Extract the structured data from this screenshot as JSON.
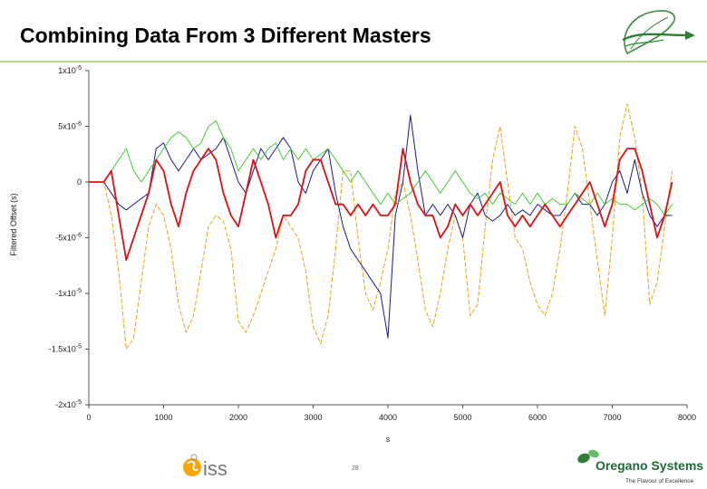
{
  "slide": {
    "title": "Combining Data From 3 Different Masters",
    "page_number": "28",
    "footer_logo_left_text": "iss",
    "footer_brand": "Oregano Systems",
    "footer_tagline": "The Flavour of Excellence"
  },
  "colors": {
    "series_dark_blue": "#1a1a8c",
    "series_red": "#dd1111",
    "series_green": "#44cc33",
    "series_orange": "#e8a417",
    "accent_green": "#2e7d32",
    "iss_orange": "#f7a600"
  },
  "icons": {
    "header_logo": "green-leaf-arrow-icon",
    "footer_left_logo": "iss-logo-icon",
    "footer_right_logo": "oregano-leaf-icon"
  },
  "chart_data": {
    "type": "line",
    "title": "",
    "xlabel": "s",
    "ylabel": "Filtered Offset (s)",
    "xlim": [
      0,
      8000
    ],
    "ylim": [
      -2e-05,
      1e-05
    ],
    "grid": false,
    "legend": "none",
    "x_ticks": [
      0,
      1000,
      2000,
      3000,
      4000,
      5000,
      6000,
      7000,
      8000
    ],
    "x_tick_labels": [
      "0",
      "1000",
      "2000",
      "3000",
      "4000",
      "5000",
      "6000",
      "7000",
      "8000"
    ],
    "y_ticks": [
      1e-05,
      5e-06,
      0,
      -5e-06,
      -1e-05,
      -1.5e-05,
      -2e-05
    ],
    "y_tick_labels": [
      {
        "mantissa": "1x10",
        "exp": "-5"
      },
      {
        "mantissa": "5x10",
        "exp": "-6"
      },
      {
        "mantissa": "0",
        "exp": ""
      },
      {
        "mantissa": "-5x10",
        "exp": "-6"
      },
      {
        "mantissa": "-1x10",
        "exp": "-5"
      },
      {
        "mantissa": "-1.5x10",
        "exp": "-5"
      },
      {
        "mantissa": "-2x10",
        "exp": "-5"
      }
    ],
    "series": [
      {
        "color": "#e8a417",
        "dashed": true,
        "x": [
          0,
          100,
          200,
          300,
          400,
          500,
          600,
          700,
          800,
          900,
          1000,
          1100,
          1200,
          1300,
          1400,
          1500,
          1600,
          1700,
          1800,
          1900,
          2000,
          2100,
          2200,
          2300,
          2400,
          2500,
          2600,
          2700,
          2800,
          2900,
          3000,
          3100,
          3200,
          3300,
          3400,
          3500,
          3600,
          3700,
          3800,
          3900,
          4000,
          4100,
          4200,
          4300,
          4400,
          4500,
          4600,
          4700,
          4800,
          4900,
          5000,
          5100,
          5200,
          5300,
          5400,
          5500,
          5600,
          5700,
          5800,
          5900,
          6000,
          6100,
          6200,
          6300,
          6400,
          6500,
          6600,
          6700,
          6800,
          6900,
          7000,
          7100,
          7200,
          7300,
          7400,
          7500,
          7600,
          7700,
          7800
        ],
        "y": [
          0,
          0,
          0,
          -3e-06,
          -8e-06,
          -1.5e-05,
          -1.4e-05,
          -9e-06,
          -4e-06,
          -2e-06,
          -3e-06,
          -6e-06,
          -1.1e-05,
          -1.35e-05,
          -1.2e-05,
          -8e-06,
          -4e-06,
          -3e-06,
          -3.5e-06,
          -6e-06,
          -1.25e-05,
          -1.35e-05,
          -1.2e-05,
          -1e-05,
          -8e-06,
          -6e-06,
          -3e-06,
          -4e-06,
          -5e-06,
          -8e-06,
          -1.3e-05,
          -1.45e-05,
          -1.2e-05,
          -6e-06,
          1e-06,
          1e-06,
          -5e-06,
          -1e-05,
          -1.15e-05,
          -9e-06,
          -6e-06,
          -1e-06,
          0,
          -3e-06,
          -7e-06,
          -1.15e-05,
          -1.3e-05,
          -1e-05,
          -6e-06,
          -3e-06,
          -5e-06,
          -1.2e-05,
          -1.1e-05,
          -4e-06,
          2e-06,
          5e-06,
          0,
          -5e-06,
          -6e-06,
          -9e-06,
          -1.1e-05,
          -1.2e-05,
          -1e-05,
          -6e-06,
          -1e-06,
          5e-06,
          3e-06,
          -2e-06,
          -7e-06,
          -1.2e-05,
          -5e-06,
          4e-06,
          7e-06,
          4e-06,
          -1e-06,
          -1.1e-05,
          -9e-06,
          -4e-06,
          1e-06
        ]
      },
      {
        "color": "#1a1a8c",
        "dashed": false,
        "x": [
          0,
          100,
          200,
          300,
          400,
          500,
          600,
          700,
          800,
          900,
          1000,
          1100,
          1200,
          1300,
          1400,
          1500,
          1600,
          1700,
          1800,
          1900,
          2000,
          2100,
          2200,
          2300,
          2400,
          2500,
          2600,
          2700,
          2800,
          2900,
          3000,
          3100,
          3200,
          3300,
          3400,
          3500,
          3600,
          3700,
          3800,
          3900,
          4000,
          4100,
          4200,
          4300,
          4400,
          4500,
          4600,
          4700,
          4800,
          4900,
          5000,
          5100,
          5200,
          5300,
          5400,
          5500,
          5600,
          5700,
          5800,
          5900,
          6000,
          6100,
          6200,
          6300,
          6400,
          6500,
          6600,
          6700,
          6800,
          6900,
          7000,
          7100,
          7200,
          7300,
          7400,
          7500,
          7600,
          7700,
          7800
        ],
        "y": [
          0,
          0,
          0,
          -1e-06,
          -2e-06,
          -2.5e-06,
          -2e-06,
          -1.5e-06,
          -1e-06,
          3e-06,
          3.5e-06,
          2e-06,
          1e-06,
          2e-06,
          3e-06,
          2e-06,
          2.5e-06,
          3e-06,
          4e-06,
          2e-06,
          0,
          -1e-06,
          1e-06,
          3e-06,
          2e-06,
          3e-06,
          4e-06,
          3e-06,
          0,
          -1e-06,
          1e-06,
          2e-06,
          3e-06,
          -1e-06,
          -4e-06,
          -6e-06,
          -7e-06,
          -8e-06,
          -9e-06,
          -1e-05,
          -1.4e-05,
          -3e-06,
          0,
          6e-06,
          1e-06,
          -3e-06,
          -2e-06,
          -3e-06,
          -2e-06,
          -3e-06,
          -5e-06,
          -2e-06,
          -1e-06,
          -3e-06,
          -3.5e-06,
          -3e-06,
          -2e-06,
          -3e-06,
          -2.5e-06,
          -3e-06,
          -2e-06,
          -2.5e-06,
          -3e-06,
          -3e-06,
          -2e-06,
          -1e-06,
          -2e-06,
          -2e-06,
          -3e-06,
          -2e-06,
          0,
          1e-06,
          -1e-06,
          2e-06,
          -1e-06,
          -3e-06,
          -4e-06,
          -3e-06,
          -3e-06
        ]
      },
      {
        "color": "#44cc33",
        "dashed": false,
        "x": [
          0,
          100,
          200,
          300,
          400,
          500,
          600,
          700,
          800,
          900,
          1000,
          1100,
          1200,
          1300,
          1400,
          1500,
          1600,
          1700,
          1800,
          1900,
          2000,
          2100,
          2200,
          2300,
          2400,
          2500,
          2600,
          2700,
          2800,
          2900,
          3000,
          3100,
          3200,
          3300,
          3400,
          3500,
          3600,
          3700,
          3800,
          3900,
          4000,
          4100,
          4200,
          4300,
          4400,
          4500,
          4600,
          4700,
          4800,
          4900,
          5000,
          5100,
          5200,
          5300,
          5400,
          5500,
          5600,
          5700,
          5800,
          5900,
          6000,
          6100,
          6200,
          6300,
          6400,
          6500,
          6600,
          6700,
          6800,
          6900,
          7000,
          7100,
          7200,
          7300,
          7400,
          7500,
          7600,
          7700,
          7800
        ],
        "y": [
          0,
          0,
          0,
          1e-06,
          2e-06,
          3e-06,
          1e-06,
          0,
          1e-06,
          2e-06,
          3e-06,
          4e-06,
          4.5e-06,
          4e-06,
          3e-06,
          3.5e-06,
          5e-06,
          5.5e-06,
          4e-06,
          3e-06,
          1e-06,
          2e-06,
          3e-06,
          2e-06,
          3e-06,
          3.5e-06,
          2e-06,
          3e-06,
          2e-06,
          3e-06,
          2e-06,
          2.5e-06,
          3e-06,
          2e-06,
          1e-06,
          0,
          1e-06,
          0,
          -1e-06,
          -2e-06,
          -1e-06,
          -2e-06,
          -1.5e-06,
          -1e-06,
          0,
          1e-06,
          0,
          -1e-06,
          0,
          1e-06,
          0,
          -1e-06,
          -1.5e-06,
          -1e-06,
          -2e-06,
          -1e-06,
          -1.5e-06,
          -2e-06,
          -1e-06,
          -2e-06,
          -1e-06,
          -2e-06,
          -1.5e-06,
          -2e-06,
          -2e-06,
          -1e-06,
          -1.5e-06,
          -2e-06,
          -1e-06,
          -2e-06,
          -1.5e-06,
          -2e-06,
          -2e-06,
          -2.5e-06,
          -2e-06,
          -1.5e-06,
          -2e-06,
          -3e-06,
          -2e-06
        ]
      },
      {
        "color": "#dd1111",
        "dashed": false,
        "x": [
          0,
          100,
          200,
          300,
          400,
          500,
          600,
          700,
          800,
          900,
          1000,
          1100,
          1200,
          1300,
          1400,
          1500,
          1600,
          1700,
          1800,
          1900,
          2000,
          2100,
          2200,
          2300,
          2400,
          2500,
          2600,
          2700,
          2800,
          2900,
          3000,
          3100,
          3200,
          3300,
          3400,
          3500,
          3600,
          3700,
          3800,
          3900,
          4000,
          4100,
          4200,
          4300,
          4400,
          4500,
          4600,
          4700,
          4800,
          4900,
          5000,
          5100,
          5200,
          5300,
          5400,
          5500,
          5600,
          5700,
          5800,
          5900,
          6000,
          6100,
          6200,
          6300,
          6400,
          6500,
          6600,
          6700,
          6800,
          6900,
          7000,
          7100,
          7200,
          7300,
          7400,
          7500,
          7600,
          7700,
          7800
        ],
        "y": [
          0,
          0,
          0,
          1e-06,
          -3e-06,
          -7e-06,
          -5e-06,
          -3e-06,
          -1e-06,
          2e-06,
          1e-06,
          -2e-06,
          -4e-06,
          -1e-06,
          1e-06,
          2e-06,
          3e-06,
          2e-06,
          -1e-06,
          -3e-06,
          -4e-06,
          -1e-06,
          2e-06,
          0,
          -2e-06,
          -5e-06,
          -3e-06,
          -3e-06,
          -2e-06,
          1e-06,
          2e-06,
          2e-06,
          0,
          -2e-06,
          -2e-06,
          -3e-06,
          -2e-06,
          -3e-06,
          -2e-06,
          -3e-06,
          -3e-06,
          -2e-06,
          3e-06,
          0,
          -2e-06,
          -3e-06,
          -3e-06,
          -5e-06,
          -4e-06,
          -2e-06,
          -3e-06,
          -2e-06,
          -3e-06,
          -2e-06,
          -1e-06,
          0,
          -3e-06,
          -4e-06,
          -3e-06,
          -4e-06,
          -3e-06,
          -2e-06,
          -3e-06,
          -4e-06,
          -3e-06,
          -2e-06,
          -1e-06,
          0,
          -2e-06,
          -4e-06,
          -2e-06,
          2e-06,
          3e-06,
          3e-06,
          1e-06,
          -2e-06,
          -5e-06,
          -3e-06,
          0
        ]
      }
    ]
  }
}
